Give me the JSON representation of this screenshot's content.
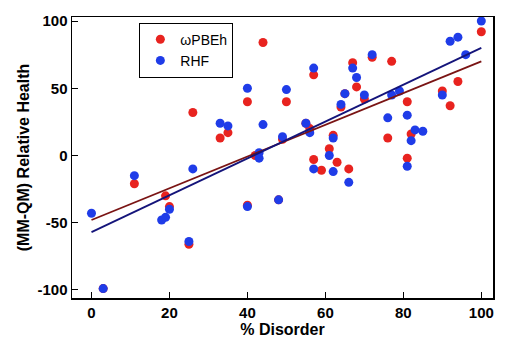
{
  "chart_data": {
    "type": "scatter",
    "x_label": "% Disorder",
    "y_label": "(MM-QM) Relative Health",
    "xlim": [
      -5,
      103
    ],
    "ylim": [
      -106,
      103
    ],
    "xticks": [
      0,
      20,
      40,
      60,
      80,
      100
    ],
    "yticks": [
      -100,
      -50,
      0,
      50,
      100
    ],
    "grid": false,
    "legend": "upper left",
    "series": [
      {
        "name": "ωPBEh",
        "color": "#e8231f",
        "type": "scatter",
        "marker": "circle",
        "x": [
          3,
          11,
          19,
          20,
          25,
          26,
          33,
          35,
          40,
          40,
          42,
          44,
          48,
          49,
          50,
          55,
          56,
          57,
          57,
          59,
          61,
          62,
          63,
          64,
          65,
          66,
          67,
          68,
          70,
          72,
          76,
          77,
          81,
          81,
          82,
          90,
          92,
          94,
          100
        ],
        "values": [
          -99,
          -21,
          -30,
          -38,
          -66,
          32,
          13,
          17,
          -37,
          40,
          0,
          84,
          -33,
          12,
          40,
          24,
          20,
          -3,
          60,
          -11,
          5,
          15,
          -5,
          36,
          46,
          -10,
          69,
          51,
          42,
          73,
          13,
          70,
          -2,
          40,
          16,
          48,
          37,
          55,
          92
        ]
      },
      {
        "name": "RHF",
        "color": "#1f3ce8",
        "type": "scatter",
        "marker": "circle",
        "x": [
          0,
          3,
          11,
          18,
          19,
          20,
          25,
          26,
          33,
          35,
          40,
          40,
          43,
          43,
          44,
          48,
          49,
          50,
          55,
          56,
          57,
          57,
          61,
          62,
          62,
          64,
          65,
          66,
          67,
          68,
          70,
          72,
          76,
          77,
          79,
          81,
          81,
          82,
          83,
          85,
          90,
          92,
          94,
          96,
          100
        ],
        "values": [
          -43,
          -99,
          -15,
          -48,
          -46,
          -40,
          -64,
          -10,
          24,
          22,
          -38,
          50,
          -2,
          2,
          23,
          -33,
          14,
          49,
          24,
          17,
          -10,
          65,
          0,
          13,
          -12,
          38,
          46,
          -20,
          65,
          58,
          45,
          75,
          28,
          45,
          48,
          -8,
          30,
          11,
          19,
          18,
          45,
          85,
          88,
          75,
          100
        ]
      },
      {
        "color": "#7a1414",
        "type": "line",
        "line_style": "solid",
        "x": [
          0,
          100
        ],
        "values": [
          -48,
          70
        ]
      },
      {
        "color": "#14147a",
        "type": "line",
        "line_style": "solid",
        "x": [
          0,
          100
        ],
        "values": [
          -57,
          80
        ]
      }
    ]
  }
}
